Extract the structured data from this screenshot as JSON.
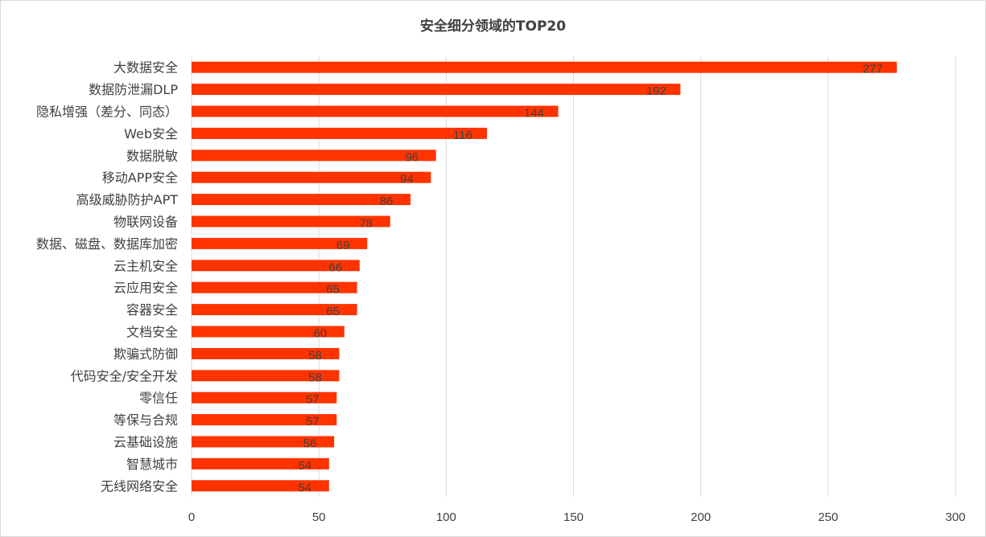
{
  "chart_data": {
    "type": "bar",
    "orientation": "horizontal",
    "title": "安全细分领域的TOP20",
    "categories": [
      "大数据安全",
      "数据防泄漏DLP",
      "隐私增强（差分、同态）",
      "Web安全",
      "数据脱敏",
      "移动APP安全",
      "高级威胁防护APT",
      "物联网设备",
      "数据、磁盘、数据库加密",
      "云主机安全",
      "云应用安全",
      "容器安全",
      "文档安全",
      "欺骗式防御",
      "代码安全/安全开发",
      "零信任",
      "等保与合规",
      "云基础设施",
      "智慧城市",
      "无线网络安全"
    ],
    "values": [
      277,
      192,
      144,
      116,
      96,
      94,
      86,
      78,
      69,
      66,
      65,
      65,
      60,
      58,
      58,
      57,
      57,
      56,
      54,
      54
    ],
    "xlim": [
      0,
      300
    ],
    "xticks": [
      0,
      50,
      100,
      150,
      200,
      250,
      300
    ],
    "bar_color": "#ff3300",
    "grid": "vertical",
    "legend": "none",
    "data_labels": true
  }
}
